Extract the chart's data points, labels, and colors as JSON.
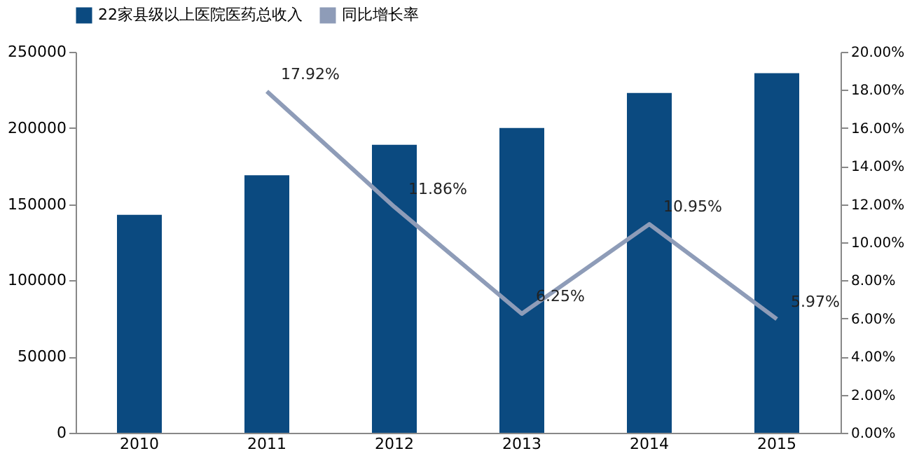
{
  "chart_data": {
    "type": "bar",
    "categories": [
      "2010",
      "2011",
      "2012",
      "2013",
      "2014",
      "2015"
    ],
    "series": [
      {
        "name": "22家县级以上医院医药总收入",
        "color": "#0b4a80",
        "values": [
          143000,
          169000,
          189000,
          200000,
          223000,
          236000
        ]
      },
      {
        "name": "同比增长率",
        "type": "line",
        "axis": "y2",
        "color": "#8e9cb8",
        "values": [
          null,
          17.92,
          11.86,
          6.25,
          10.95,
          5.97
        ],
        "value_labels": [
          null,
          "17.92%",
          "11.86%",
          "6.25%",
          "10.95%",
          "5.97%"
        ]
      }
    ],
    "ylim": [
      0,
      250000
    ],
    "yticks": [
      0,
      50000,
      100000,
      150000,
      200000,
      250000
    ],
    "y2lim": [
      0,
      20
    ],
    "y2ticks": [
      {
        "value": 0,
        "label": "0.00%"
      },
      {
        "value": 2,
        "label": "2.00%"
      },
      {
        "value": 4,
        "label": "4.00%"
      },
      {
        "value": 6,
        "label": "6.00%"
      },
      {
        "value": 8,
        "label": "8.00%"
      },
      {
        "value": 10,
        "label": "10.00%"
      },
      {
        "value": 12,
        "label": "12.00%"
      },
      {
        "value": 14,
        "label": "14.00%"
      },
      {
        "value": 16,
        "label": "16.00%"
      },
      {
        "value": 18,
        "label": "18.00%"
      },
      {
        "value": 20,
        "label": "20.00%"
      }
    ],
    "legend": "top",
    "grid": false,
    "marker": "none"
  }
}
